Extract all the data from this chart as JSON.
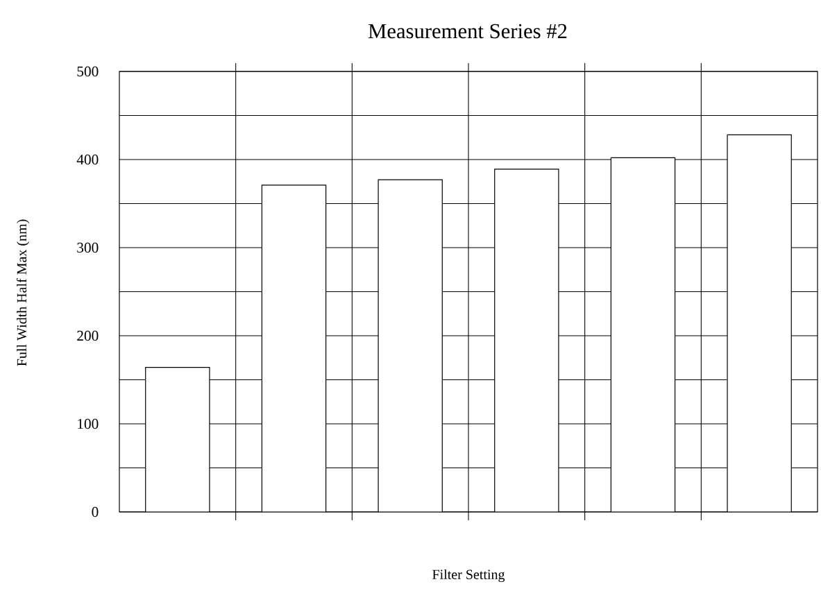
{
  "chart_data": {
    "type": "bar",
    "title": "Measurement Series #2",
    "xlabel": "Filter Setting",
    "ylabel": "Full Width Half Max (nm)",
    "categories": [
      null,
      null,
      null,
      null,
      null,
      null
    ],
    "values": [
      164,
      371,
      377,
      389,
      402,
      428
    ],
    "color": "#ffffff",
    "ylim": [
      0,
      500
    ],
    "yticks": [
      0,
      {
        "value": 50,
        "label": null
      },
      100,
      {
        "value": 150,
        "label": null
      },
      200,
      {
        "value": 250,
        "label": null
      },
      300,
      {
        "value": 350,
        "label": null
      },
      400,
      {
        "value": 450,
        "label": null
      },
      500
    ],
    "grid": true,
    "tick_labels": "y"
  }
}
